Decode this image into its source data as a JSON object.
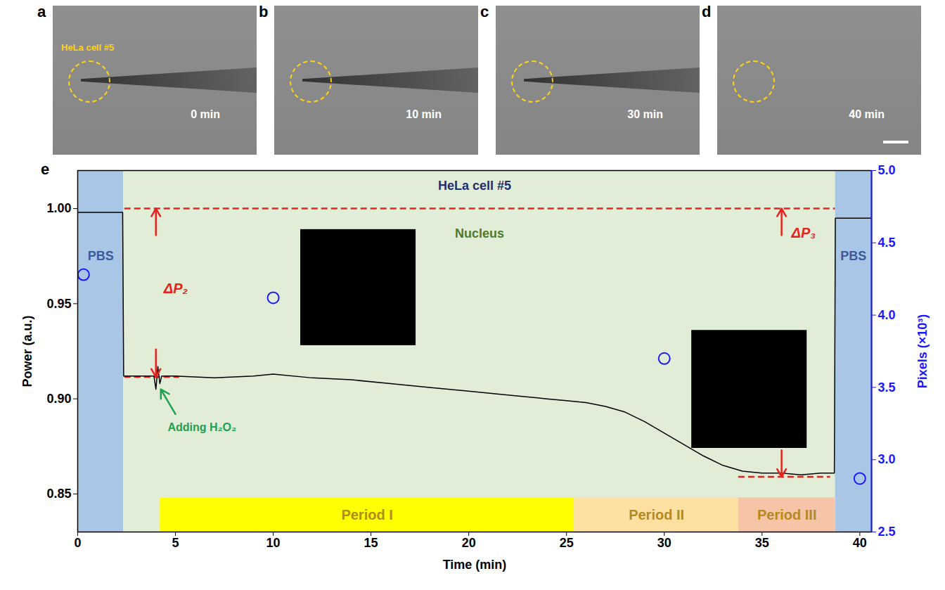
{
  "panels": [
    {
      "letter": "a",
      "label": "0 min",
      "annotation": "HeLa cell #5"
    },
    {
      "letter": "b",
      "label": "10 min"
    },
    {
      "letter": "c",
      "label": "30 min"
    },
    {
      "letter": "d",
      "label": "40 min"
    }
  ],
  "chart_data": {
    "letter": "e",
    "type": "line",
    "title": "HeLa cell #5",
    "xlabel": "Time (min)",
    "ylabel": "Power (a.u.)",
    "y2label": "Pixels (×10³)",
    "xlim": [
      0,
      40.6
    ],
    "xticks": [
      0,
      5,
      10,
      15,
      20,
      25,
      30,
      35,
      40
    ],
    "ylim": [
      0.83,
      1.02
    ],
    "yticks": [
      {
        "value": 0.85,
        "label": "0.85"
      },
      {
        "value": 0.9,
        "label": "0.90"
      },
      {
        "value": 0.95,
        "label": "0.95"
      },
      {
        "value": 1.0,
        "label": "1.00"
      }
    ],
    "y2lim": [
      2.5,
      5.0
    ],
    "y2ticks": [
      {
        "value": 2.5,
        "label": "2.5"
      },
      {
        "value": 3.0,
        "label": "3.0"
      },
      {
        "value": 3.5,
        "label": "3.5"
      },
      {
        "value": 4.0,
        "label": "4.0"
      },
      {
        "value": 4.5,
        "label": "4.5"
      },
      {
        "value": 5.0,
        "label": "5.0"
      }
    ],
    "series": [
      {
        "type": "line",
        "color": "#000000",
        "x": [
          0,
          2.3,
          2.35,
          3.9,
          4.0,
          4.1,
          4.2,
          4.3,
          5,
          7,
          9,
          10,
          12,
          14,
          16,
          18,
          20,
          22,
          24,
          25,
          26,
          27,
          28,
          29,
          30,
          31,
          32,
          33,
          34,
          35,
          36,
          37,
          38,
          38.7,
          38.75,
          40.6
        ],
        "values": [
          0.998,
          0.998,
          0.912,
          0.912,
          0.905,
          0.917,
          0.908,
          0.912,
          0.912,
          0.911,
          0.912,
          0.913,
          0.911,
          0.91,
          0.908,
          0.906,
          0.904,
          0.902,
          0.9,
          0.899,
          0.898,
          0.896,
          0.893,
          0.888,
          0.882,
          0.876,
          0.87,
          0.865,
          0.862,
          0.861,
          0.861,
          0.86,
          0.861,
          0.861,
          0.995,
          0.995
        ]
      },
      {
        "type": "scatter",
        "axis": "y2",
        "color": "#1a1aff",
        "marker": "circle",
        "x": [
          0.3,
          10,
          30,
          40
        ],
        "values": [
          4.28,
          4.12,
          3.7,
          2.87
        ]
      }
    ],
    "backgrounds": [
      {
        "x": [
          0,
          2.35
        ],
        "color": "#a9c6e6",
        "label": "PBS",
        "label_color": "#3a5a9a",
        "label_y": 0.975
      },
      {
        "x": [
          2.35,
          38.75
        ],
        "color": "#e2edd8",
        "label": "Nucleus",
        "label_color": "#4f7a2a",
        "label_y": 0.987
      },
      {
        "x": [
          38.75,
          40.6
        ],
        "color": "#a9c6e6",
        "label": "PBS",
        "label_color": "#3a5a9a",
        "label_y": 0.975
      }
    ],
    "periods": [
      {
        "label": "Period I",
        "x": [
          4.2,
          25.4
        ],
        "color": "#ffff00"
      },
      {
        "label": "Period II",
        "x": [
          25.4,
          33.8
        ],
        "color": "#ffe0a3"
      },
      {
        "label": "Period III",
        "x": [
          33.8,
          38.75
        ],
        "color": "#f6c4a6"
      }
    ],
    "period_y": [
      0.83,
      0.848
    ],
    "period_label_color": "#b38a1f",
    "reference_lines": [
      {
        "y": 1.0,
        "x": [
          2.4,
          38.75
        ],
        "color": "#e8231f",
        "line_style": "dashed"
      },
      {
        "y": 0.9115,
        "x": [
          2.4,
          5.2
        ],
        "color": "#e8231f",
        "line_style": "dashed"
      },
      {
        "y": 0.859,
        "x": [
          33.8,
          38.5
        ],
        "color": "#e8231f",
        "line_style": "dashed"
      }
    ],
    "deltas": [
      {
        "label": "ΔP₂",
        "label_at": [
          4.4,
          0.958
        ],
        "x": 4,
        "arrows": [
          [
            0.986,
            1.0
          ],
          [
            0.926,
            0.9115
          ]
        ],
        "color": "#e8231f"
      },
      {
        "label": "ΔP₃",
        "label_at": [
          36.5,
          0.987
        ],
        "x": 36,
        "arrows": [
          [
            0.986,
            1.0
          ],
          [
            0.873,
            0.859
          ]
        ],
        "color": "#e8231f"
      }
    ],
    "annotations": [
      {
        "text": "Adding H₂O₂",
        "x": 4.6,
        "y": 0.885,
        "arrow_from": [
          5.0,
          0.892
        ],
        "arrow_to": [
          4.25,
          0.905
        ],
        "color": "#1fa055"
      }
    ],
    "insets": [
      {
        "x": [
          11.4,
          17.3
        ],
        "y": [
          0.928,
          0.989
        ],
        "color": "#000000"
      },
      {
        "x": [
          31.4,
          37.3
        ],
        "y": [
          0.874,
          0.936
        ],
        "color": "#000000"
      }
    ],
    "title_color": "#1f2f6f"
  }
}
